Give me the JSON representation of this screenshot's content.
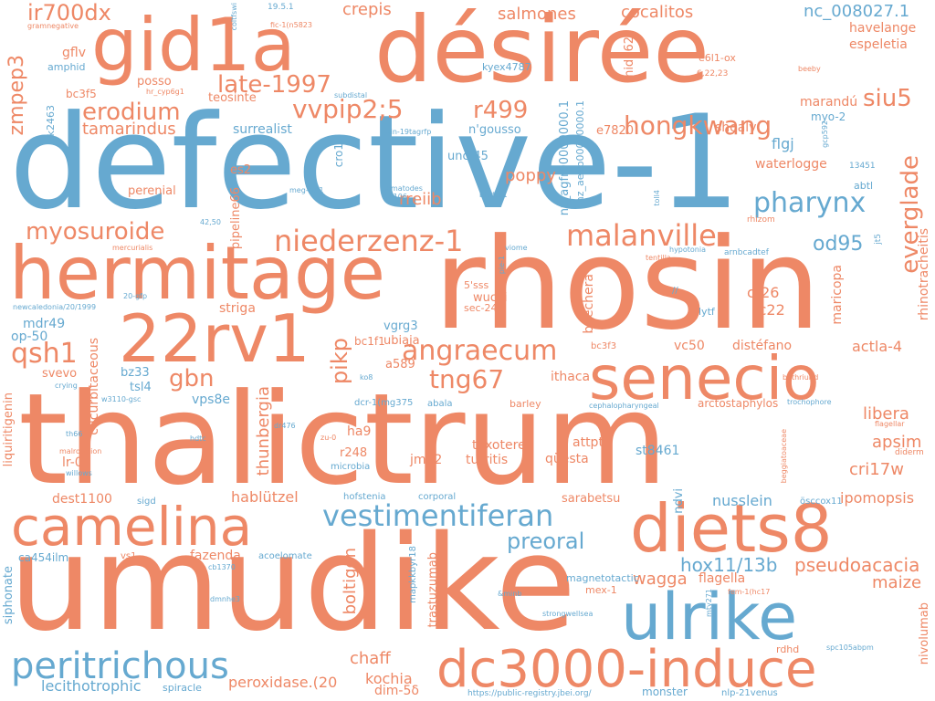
{
  "colors": {
    "orange": "#EE8866",
    "blue": "#66A9D0",
    "background": "#FFFFFF"
  },
  "words": {
    "defective_1": "defective-1",
    "rhosin": "rhosin",
    "thalictrum": "thalictrum",
    "umudike": "umudike",
    "desiree": "désirée",
    "gid1a": "gid1a",
    "hermitage": "hermitage",
    "rv1": "22rv1",
    "camelina": "camelina",
    "diets8": "diets8",
    "senecio": "senecio",
    "ulrike": "ulrike",
    "dc3000": "dc3000-induce",
    "peritrichous": "peritrichous",
    "vestimentiferan": "vestimentiferan",
    "malanville": "malanville",
    "niederzenz": "niederzenz-1",
    "hongkwang": "hongkwang",
    "pharynx": "pharynx",
    "angraecum": "angraecum",
    "tng67": "tng67",
    "myosuroide": "myosuroide",
    "late1997": "late-1997",
    "vvpip": "vvpip2;5",
    "erodium": "erodium",
    "r499": "r499",
    "siu5": "siu5",
    "everglade": "everglade",
    "preoral": "preoral",
    "ir700dx": "ir700dx",
    "crepis": "crepis",
    "salmones": "salmones",
    "cocalitos": "cocalitos",
    "nc008027": "nc_008027.1",
    "havelange": "havelange",
    "espeletia": "espeletia",
    "zmpep3": "zmpep3",
    "tamarindus": "tamarindus",
    "qsh1": "qsh1",
    "gbn": "gbn",
    "pikp": "pikp",
    "od95": "od95",
    "hox11": "hox11/13b",
    "pseudoacacia": "pseudoacacia",
    "chaff": "chaff",
    "kochia": "kochia",
    "wagga": "wagga",
    "maize": "maize",
    "libera": "libera",
    "apsim": "apsim",
    "cri17w": "cri17w",
    "nusslein": "nusslein",
    "hablutzel": "hablützel",
    "thunbergia": "thunbergia",
    "boltigen": "boltigen",
    "flagella": "flagella",
    "actla4": "actla-4",
    "fc22": "fc22",
    "ct26": "ct26",
    "vc50": "vc50",
    "distefano": "distéfano",
    "rhinotracheitis": "rhinotracheitis",
    "maricopa": "maricopa",
    "poppy": "poppy",
    "rreiib": "rreiib",
    "flgj": "flgj",
    "waterlogge": "waterlogge",
    "maranda": "marandú",
    "myo2": "myo-2",
    "shoaly": "shoaly",
    "e7820": "e7820",
    "ngousso": "n'gousso",
    "unc45": "unc-45",
    "surrealist": "surrealist",
    "teosinte": "teosinte",
    "posso": "posso",
    "gflv": "gflv",
    "bc3f5": "bc3f5",
    "perenial": "perenial",
    "es2": "es2",
    "pipeline66": "pipeline66",
    "cro1": "cro1",
    "mdr49": "mdr49",
    "op50": "op-50",
    "svevo": "svevo",
    "bz33": "bz33",
    "tsl4": "tsl4",
    "vps8e": "vps8e",
    "cucurbitaceous": "cucurbitaceous",
    "striga": "striga",
    "vgrg3": "vgrg3",
    "ubiaja": "ubiaja",
    "wucai": "wucai",
    "bc1f1": "bc1f1",
    "a589": "a589",
    "ithaca": "ithaca",
    "ha9": "ha9",
    "r248": "r248",
    "jm22": "jm22",
    "lr01": "lr-01",
    "dest1100": "dest1100",
    "liquiritigenin": "liquiritigenin",
    "siphonate": "siphonate",
    "turritis": "turritis",
    "taxotere": "taxotere",
    "attpt": "attpt",
    "questa": "qüesta",
    "st8461": "st8461",
    "sarabetsu": "sarabetsu",
    "ndvi": "ndvi",
    "ipomopsis": "ipomopsis",
    "nivolumab": "nivolumab",
    "fazenda": "fazenda",
    "trastuzumab": "trastuzumab",
    "peroxidase": "peroxidase.(20",
    "lecithotrophic": "lecithotrophic",
    "dim5": "dim-5δ",
    "monster": "monster",
    "boechera": "boechera",
    "ca454ilm": "ca454ilm",
    "mex1": "mex-1",
    "rdhd": "rdhd",
    "abtl": "abtl",
    "e6l1ox": "e6l1-ox",
    "hid062": "hid062",
    "kyex4787": "kyex4787",
    "nz_agfr": "nz_agfr00000000.1",
    "nz_aeup": "nz_aeup00000000.1",
    "amphid": "amphid",
    "tk2463": "tk2463",
    "sec242": "sec-24.2",
    "sss5": "5'sss",
    "lytf": "lytf",
    "bc3f3": "bc3f3",
    "arctostaphylos": "arctostaphylos",
    "barley": "barley",
    "dcr1": "dcr-1(mg375",
    "abala": "abala",
    "microbia": "microbia",
    "corporal": "corporal",
    "hofstenia": "hofstenia",
    "sigd": "sigd",
    "acoelomate": "acoelomate",
    "vs1": "vs1",
    "magnetotactic": "magnetotactic",
    "mapkkbyr": "mapkkbyr18",
    "ossccox11": "ösccox11",
    "nlp21": "nlp-21​venus",
    "url": "https://public-registry.jbei.org/",
    "small": {
      "coltfswi": "coltfswi",
      "v1951": "19.5.1",
      "fic1": "fic-1(n5823",
      "grampos": "gramnegative",
      "hrcyp": "hr_cyp6g1",
      "subdistal": "subdistal",
      "kin19": "kin-19​tagrfp",
      "gcp592": "gcp592",
      "beeby": "beeby",
      "n62223": "6,22,23",
      "n13451": "13451",
      "meg4": "meg-4#1",
      "nematodes": "nematodes",
      "sw106": "sw106",
      "bicdcc1": "bicdcc1",
      "toll4": "toll4",
      "rhizom": "rhizom",
      "jt5": "jt5",
      "viome": "viome",
      "hypotonia": "hypotonia",
      "arnbcadtef": "arnbcadtef",
      "tentilla": "tentilla",
      "mercurialis": "mercurialis",
      "n4250": "42,50",
      "gfp20": "20-gfp",
      "newcal": "newcaledonia/20/1999",
      "pie1": "pie-1",
      "slash": "//",
      "crying": "crying",
      "w3110": "w3110-gsc",
      "ko8": "ko8",
      "bothriurid": "bothriurid",
      "cephalo": "cephalopharyngeal",
      "trocho": "trochophore",
      "flagellar": "flagellar",
      "dr476": "dr476",
      "th66": "th66",
      "hdtc": "hdtc",
      "zu0": "zu-0",
      "malrot": "malrotation",
      "willows": "willows",
      "beggiat": "beggiatoaceae",
      "diderm": "diderm",
      "cb1370": "cb1370",
      "dmnhe3": "dmnhe3",
      "minb": "&minb",
      "strongwellsea": "strongwellsea",
      "mty271": "mty271",
      "fem1": "fem-1(hc17",
      "spc105": "spc105abpm",
      "spiracle": "spiracle"
    }
  }
}
